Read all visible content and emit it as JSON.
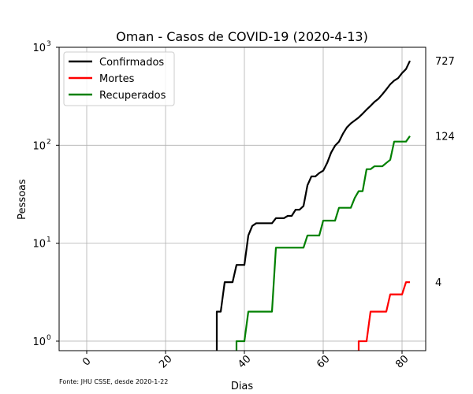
{
  "chart_data": {
    "type": "line",
    "title": "Oman - Casos de COVID-19 (2020-4-13)",
    "xlabel": "Dias",
    "ylabel": "Pessoas",
    "yscale": "log",
    "xlim": [
      -7,
      86
    ],
    "ylim": [
      0.8,
      1000
    ],
    "xticks": [
      0,
      20,
      40,
      60,
      80
    ],
    "yticks": [
      {
        "value": 1,
        "base": "10",
        "exp": "0"
      },
      {
        "value": 10,
        "base": "10",
        "exp": "1"
      },
      {
        "value": 100,
        "base": "10",
        "exp": "2"
      },
      {
        "value": 1000,
        "base": "10",
        "exp": "3"
      }
    ],
    "grid": true,
    "legend_position": "top-left",
    "source_note": "Fonte: JHU CSSE, desde 2020-1-22",
    "series": [
      {
        "name": "Confirmados",
        "color": "#000000",
        "end_label": "727",
        "points": [
          [
            33,
            0.5
          ],
          [
            33,
            2
          ],
          [
            34,
            2
          ],
          [
            35,
            4
          ],
          [
            36,
            4
          ],
          [
            37,
            4
          ],
          [
            38,
            6
          ],
          [
            39,
            6
          ],
          [
            40,
            6
          ],
          [
            41,
            12
          ],
          [
            42,
            15
          ],
          [
            43,
            16
          ],
          [
            44,
            16
          ],
          [
            45,
            16
          ],
          [
            46,
            16
          ],
          [
            47,
            16
          ],
          [
            48,
            18
          ],
          [
            49,
            18
          ],
          [
            50,
            18
          ],
          [
            51,
            19
          ],
          [
            52,
            19
          ],
          [
            53,
            22
          ],
          [
            54,
            22
          ],
          [
            55,
            24
          ],
          [
            56,
            39
          ],
          [
            57,
            48
          ],
          [
            58,
            48
          ],
          [
            59,
            52
          ],
          [
            60,
            55
          ],
          [
            61,
            66
          ],
          [
            62,
            84
          ],
          [
            63,
            99
          ],
          [
            64,
            109
          ],
          [
            65,
            131
          ],
          [
            66,
            152
          ],
          [
            67,
            167
          ],
          [
            68,
            179
          ],
          [
            69,
            192
          ],
          [
            70,
            210
          ],
          [
            71,
            231
          ],
          [
            72,
            252
          ],
          [
            73,
            277
          ],
          [
            74,
            298
          ],
          [
            75,
            331
          ],
          [
            76,
            371
          ],
          [
            77,
            419
          ],
          [
            78,
            457
          ],
          [
            79,
            484
          ],
          [
            80,
            546
          ],
          [
            81,
            599
          ],
          [
            82,
            727
          ]
        ]
      },
      {
        "name": "Mortes",
        "color": "#ff0000",
        "end_label": "4",
        "points": [
          [
            69,
            0.5
          ],
          [
            69,
            1
          ],
          [
            70,
            1
          ],
          [
            71,
            1
          ],
          [
            72,
            2
          ],
          [
            73,
            2
          ],
          [
            74,
            2
          ],
          [
            75,
            2
          ],
          [
            76,
            2
          ],
          [
            77,
            3
          ],
          [
            78,
            3
          ],
          [
            79,
            3
          ],
          [
            80,
            3
          ],
          [
            81,
            4
          ],
          [
            82,
            4
          ]
        ]
      },
      {
        "name": "Recuperados",
        "color": "#008000",
        "end_label": "124",
        "points": [
          [
            38,
            0.5
          ],
          [
            38,
            1
          ],
          [
            39,
            1
          ],
          [
            40,
            1
          ],
          [
            41,
            2
          ],
          [
            42,
            2
          ],
          [
            43,
            2
          ],
          [
            44,
            2
          ],
          [
            45,
            2
          ],
          [
            46,
            2
          ],
          [
            47,
            2
          ],
          [
            48,
            9
          ],
          [
            49,
            9
          ],
          [
            50,
            9
          ],
          [
            51,
            9
          ],
          [
            52,
            9
          ],
          [
            53,
            9
          ],
          [
            54,
            9
          ],
          [
            55,
            9
          ],
          [
            56,
            12
          ],
          [
            57,
            12
          ],
          [
            58,
            12
          ],
          [
            59,
            12
          ],
          [
            60,
            17
          ],
          [
            61,
            17
          ],
          [
            62,
            17
          ],
          [
            63,
            17
          ],
          [
            64,
            23
          ],
          [
            65,
            23
          ],
          [
            66,
            23
          ],
          [
            67,
            23
          ],
          [
            68,
            29
          ],
          [
            69,
            34
          ],
          [
            70,
            34
          ],
          [
            71,
            57
          ],
          [
            72,
            57
          ],
          [
            73,
            61
          ],
          [
            74,
            61
          ],
          [
            75,
            61
          ],
          [
            76,
            66
          ],
          [
            77,
            71
          ],
          [
            78,
            109
          ],
          [
            79,
            109
          ],
          [
            80,
            109
          ],
          [
            81,
            109
          ],
          [
            82,
            124
          ]
        ]
      }
    ]
  }
}
